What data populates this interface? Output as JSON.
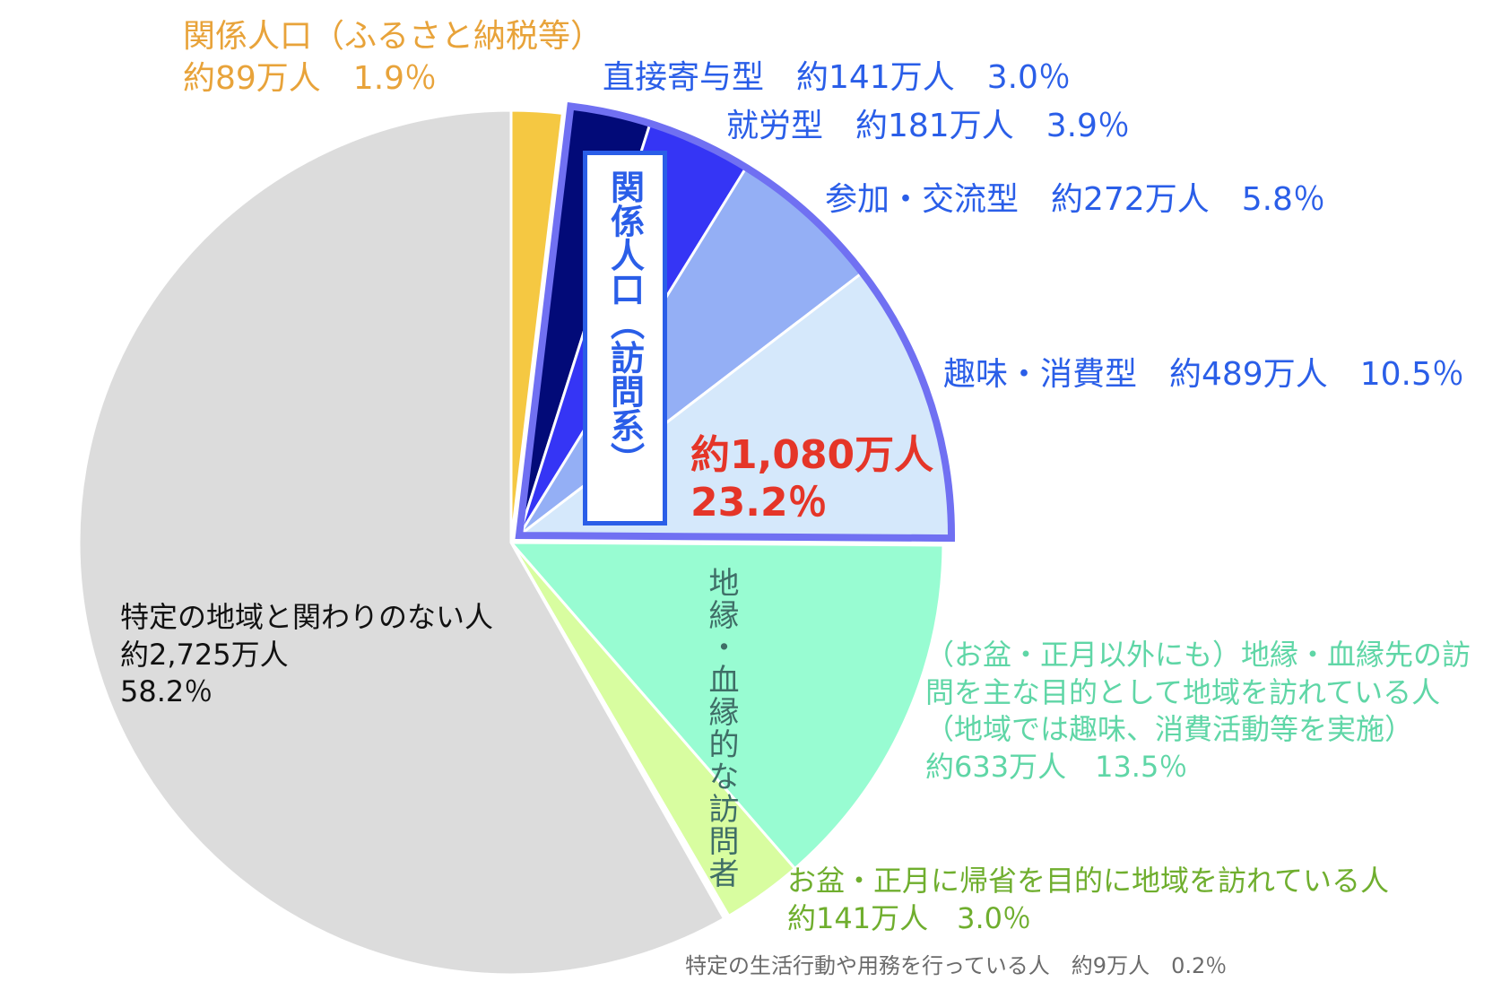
{
  "chart_data": {
    "type": "pie",
    "start_angle_deg": 0,
    "direction": "clockwise",
    "slices": [
      {
        "key": "kankei_furusato",
        "value": 1.9,
        "color": "#f5c842",
        "label_lines": [
          "関係人口（ふるさと納税等）",
          "約89万人　1.9％"
        ],
        "label_color": "#e8a33a"
      },
      {
        "key": "chokusetsu",
        "value": 3.0,
        "color": "#020a78",
        "label_lines": [
          "直接寄与型　約141万人　3.0％"
        ],
        "label_color": "#2a5ee8"
      },
      {
        "key": "shuro",
        "value": 3.9,
        "color": "#3535f5",
        "label_lines": [
          "就労型　約181万人　3.9％"
        ],
        "label_color": "#2a5ee8"
      },
      {
        "key": "sanka",
        "value": 5.8,
        "color": "#94aff5",
        "label_lines": [
          "参加・交流型　約272万人　5.8％"
        ],
        "label_color": "#2a5ee8"
      },
      {
        "key": "shumi",
        "value": 10.5,
        "color": "#d5e8fb",
        "label_lines": [
          "趣味・消費型　約489万人　10.5％"
        ],
        "label_color": "#2a5ee8"
      },
      {
        "key": "chien_houmon",
        "value": 13.5,
        "color": "#98fcd2",
        "label_lines": [
          "（お盆・正月以外にも）地縁・血縁先の訪",
          "問を主な目的として地域を訪れている人",
          "（地域では趣味、消費活動等を実施）",
          "約633万人　13.5％"
        ],
        "label_color": "#5fd6a6"
      },
      {
        "key": "kisei",
        "value": 3.0,
        "color": "#d8fda0",
        "label_lines": [
          "お盆・正月に帰省を目的に地域を訪れている人",
          "約141万人　3.0％"
        ],
        "label_color": "#6fae2e"
      },
      {
        "key": "tokutei_seikatsu",
        "value": 0.2,
        "color": "#ffffff",
        "label_lines": [
          "特定の生活行動や用務を行っている人　約9万人　0.2％"
        ],
        "label_color": "#6b6b6b"
      },
      {
        "key": "kakawari_nai",
        "value": 58.2,
        "color": "#dcdcdc",
        "label_lines": [
          "特定の地域と関わりのない人",
          "約2,725万人",
          " 58.2％"
        ],
        "label_color": "#111111"
      }
    ],
    "group_outline": {
      "slices": [
        "chokusetsu",
        "shuro",
        "sanka",
        "shumi"
      ],
      "color": "#7070f2",
      "vertical_label": "関係人口（訪問系）",
      "vertical_label_color": "#2a5ee8",
      "total_lines": [
        "約1,080万人",
        "23.2％"
      ],
      "total_color": "#e53528"
    },
    "bracket_label": {
      "text": "地縁・血縁的な訪問者",
      "color": "#3f6e67"
    }
  }
}
